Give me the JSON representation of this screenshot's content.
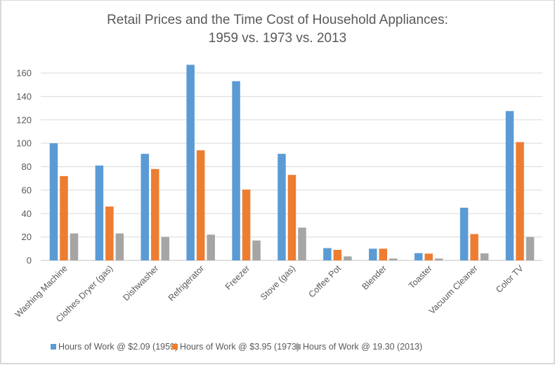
{
  "chart_data": {
    "type": "bar",
    "title": [
      "Retail Prices and the Time Cost of Household Appliances:",
      "1959 vs. 1973 vs. 2013"
    ],
    "xlabel": "",
    "ylabel": "",
    "ylim": [
      0,
      160
    ],
    "yticks": [
      0,
      20,
      40,
      60,
      80,
      100,
      120,
      140,
      160
    ],
    "grid": true,
    "legend_position": "bottom",
    "categories": [
      "Washing Machine",
      "Clothes Dryer (gas)",
      "Dishwasher",
      "Refrigerator",
      "Freezer",
      "Stove (gas)",
      "Coffee Pot",
      "Blender",
      "Toaster",
      "Vacuum Cleaner",
      "Color TV"
    ],
    "series": [
      {
        "name": "Hours of Work @ $2.09 (1959)",
        "color": "#5b9bd5",
        "values": [
          100,
          81,
          91,
          167,
          153,
          91,
          10.5,
          10,
          6.2,
          45,
          127.5
        ]
      },
      {
        "name": "Hours of Work @ $3.95 (1973)",
        "color": "#ed7d31",
        "values": [
          72,
          46,
          78,
          94,
          60.5,
          73,
          9,
          10,
          5.8,
          22.5,
          101
        ]
      },
      {
        "name": "Hours of Work @ 19.30 (2013)",
        "color": "#a5a5a5",
        "values": [
          23,
          23,
          20,
          22,
          17,
          28,
          3.4,
          1.6,
          1.6,
          6,
          20
        ]
      }
    ]
  }
}
